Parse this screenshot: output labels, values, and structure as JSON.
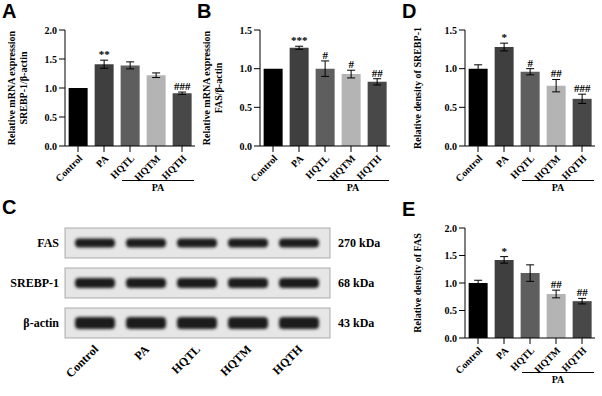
{
  "chart_data": [
    {
      "panel": "A",
      "type": "bar",
      "categories": [
        "Control",
        "PA",
        "HQTL",
        "HQTM",
        "HQTH"
      ],
      "values": [
        1.0,
        1.41,
        1.39,
        1.22,
        0.91
      ],
      "errors": [
        0,
        0.07,
        0.06,
        0.04,
        0.02
      ],
      "significance": [
        null,
        "**",
        null,
        null,
        "###"
      ],
      "colors": [
        "#000000",
        "#3f3f3f",
        "#5e5e5e",
        "#b4b4b4",
        "#484848"
      ],
      "ylabel": [
        "Relative mRNA expression",
        "SREBP-1/β-actin"
      ],
      "ylim": [
        0,
        2
      ],
      "yticks": [
        {
          "value": 0,
          "label": "0.0"
        },
        {
          "value": 0.5,
          "label": "0.5"
        },
        {
          "value": 1,
          "label": "1.0"
        },
        {
          "value": 1.5,
          "label": "1.5"
        },
        {
          "value": 2,
          "label": "2.0"
        }
      ],
      "group_label": "PA",
      "group_span": [
        "HQTL",
        "HQTH"
      ]
    },
    {
      "panel": "B",
      "type": "bar",
      "categories": [
        "Control",
        "PA",
        "HQTL",
        "HQTM",
        "HQTH"
      ],
      "values": [
        1.0,
        1.27,
        1.0,
        0.93,
        0.83
      ],
      "errors": [
        0,
        0.02,
        0.1,
        0.05,
        0.04
      ],
      "significance": [
        null,
        "***",
        "#",
        "#",
        "##"
      ],
      "colors": [
        "#000000",
        "#3f3f3f",
        "#5e5e5e",
        "#b4b4b4",
        "#484848"
      ],
      "ylabel": [
        "Relative mRNA expression",
        "FAS/β-actin"
      ],
      "ylim": [
        0,
        1.5
      ],
      "yticks": [
        {
          "value": 0,
          "label": "0.0"
        },
        {
          "value": 0.5,
          "label": "0.5"
        },
        {
          "value": 1,
          "label": "1.0"
        },
        {
          "value": 1.5,
          "label": "1.5"
        }
      ],
      "group_label": "PA",
      "group_span": [
        "HQTL",
        "HQTH"
      ]
    },
    {
      "panel": "D",
      "type": "bar",
      "categories": [
        "Control",
        "PA",
        "HQTL",
        "HQTM",
        "HQTH"
      ],
      "values": [
        1.0,
        1.28,
        0.96,
        0.78,
        0.61
      ],
      "errors": [
        0.05,
        0.05,
        0.04,
        0.08,
        0.06
      ],
      "significance": [
        null,
        "*",
        "#",
        "##",
        "###"
      ],
      "colors": [
        "#000000",
        "#3f3f3f",
        "#5e5e5e",
        "#b4b4b4",
        "#484848"
      ],
      "ylabel": "Relative density of SREBP-1",
      "ylim": [
        0,
        1.5
      ],
      "yticks": [
        {
          "value": 0,
          "label": "0.0"
        },
        {
          "value": 0.5,
          "label": "0.5"
        },
        {
          "value": 1,
          "label": "1.0"
        },
        {
          "value": 1.5,
          "label": "1.5"
        }
      ],
      "group_label": "PA",
      "group_span": [
        "HQTL",
        "HQTH"
      ]
    },
    {
      "panel": "E",
      "type": "bar",
      "categories": [
        "Control",
        "PA",
        "HQTL",
        "HQTM",
        "HQTH"
      ],
      "values": [
        1.0,
        1.42,
        1.18,
        0.8,
        0.67
      ],
      "errors": [
        0.05,
        0.06,
        0.15,
        0.07,
        0.05
      ],
      "significance": [
        null,
        "*",
        null,
        "##",
        "##"
      ],
      "colors": [
        "#000000",
        "#3f3f3f",
        "#5e5e5e",
        "#b4b4b4",
        "#484848"
      ],
      "ylabel": "Relative density of FAS",
      "ylim": [
        0,
        2
      ],
      "yticks": [
        {
          "value": 0,
          "label": "0.0"
        },
        {
          "value": 0.5,
          "label": "0.5"
        },
        {
          "value": 1,
          "label": "1.0"
        },
        {
          "value": 1.5,
          "label": "1.5"
        },
        {
          "value": 2,
          "label": "2.0"
        }
      ],
      "group_label": "PA",
      "group_span": [
        "HQTL",
        "HQTH"
      ]
    }
  ],
  "blot": {
    "panel": "C",
    "lanes": [
      "Control",
      "PA",
      "HQTL",
      "HQTM",
      "HQTH"
    ],
    "proteins": [
      {
        "name": "FAS",
        "size": "270 kDa"
      },
      {
        "name": "SREBP-1",
        "size": "68 kDa"
      },
      {
        "name": "β-actin",
        "size": "43 kDa"
      }
    ]
  }
}
